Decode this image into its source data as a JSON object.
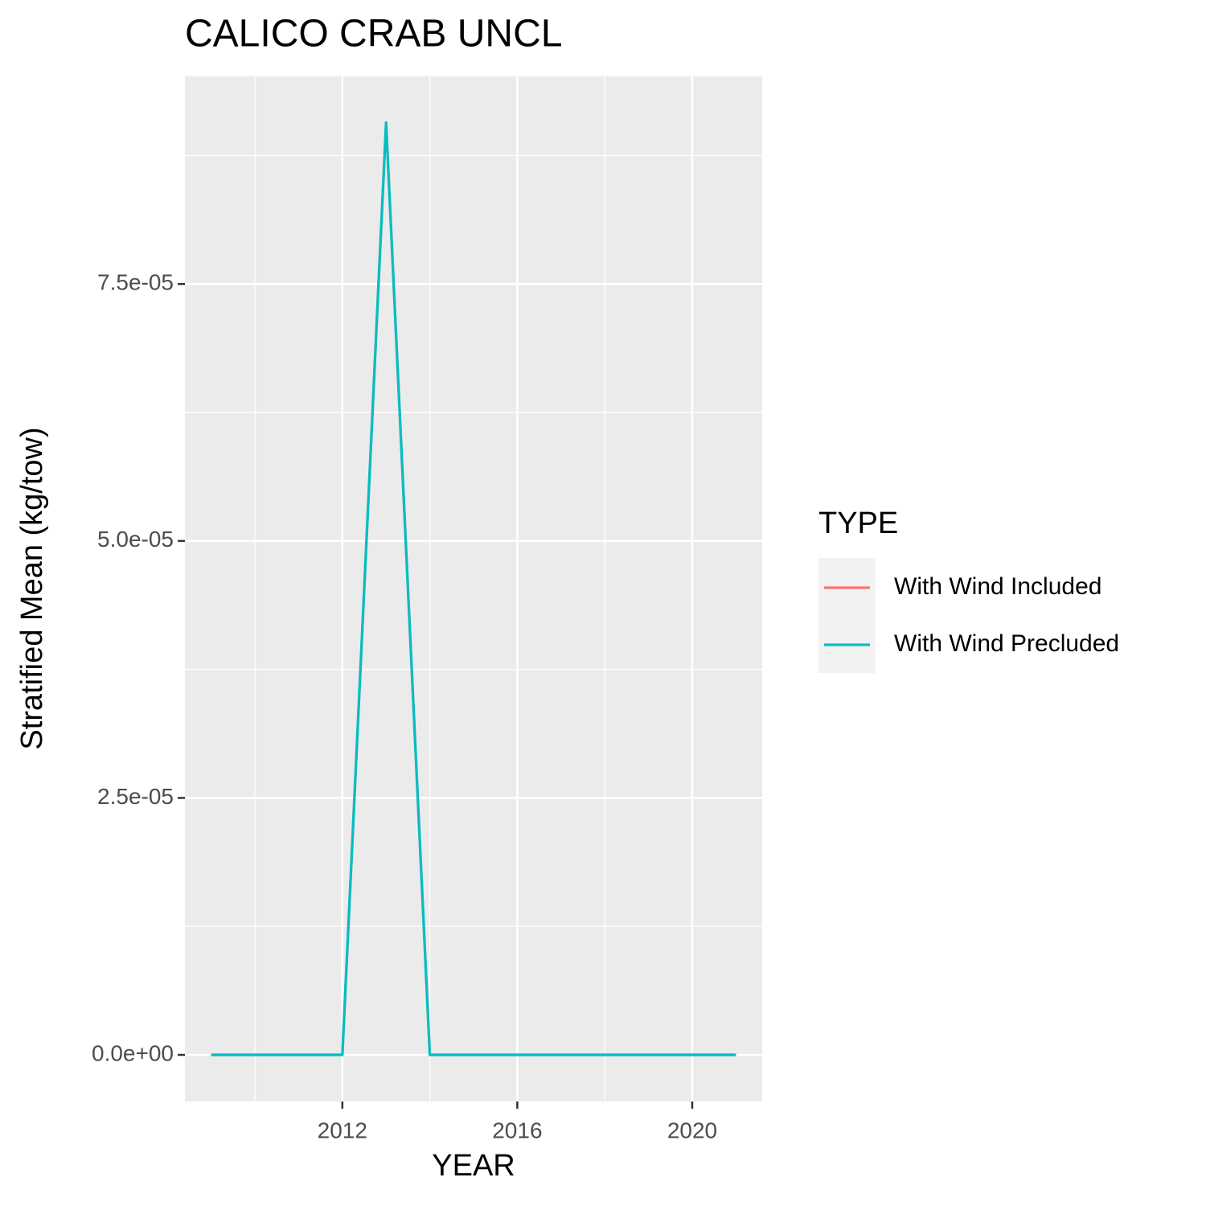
{
  "chart_data": {
    "type": "line",
    "title": "CALICO CRAB UNCL",
    "x_label": "YEAR",
    "y_label": "Stratified Mean (kg/tow)",
    "x": [
      2009,
      2010,
      2011,
      2012,
      2013,
      2014,
      2015,
      2016,
      2017,
      2018,
      2019,
      2020,
      2021
    ],
    "series": [
      {
        "name": "With Wind Included",
        "color": "#F8766D",
        "values": [
          0,
          0,
          0,
          0,
          9.07e-05,
          0,
          0,
          0,
          0,
          0,
          0,
          0,
          0
        ]
      },
      {
        "name": "With Wind Precluded",
        "color": "#00BFC4",
        "values": [
          0,
          0,
          0,
          0,
          9.07e-05,
          0,
          0,
          0,
          0,
          0,
          0,
          0,
          0
        ]
      }
    ],
    "xlim": [
      2008.4,
      2021.6
    ],
    "xticks": [
      2012,
      2016,
      2020
    ],
    "ylim": [
      -4.535e-06,
      9.52e-05
    ],
    "yticks": [
      {
        "value": 0,
        "label": "0.0e+00"
      },
      {
        "value": 2.5e-05,
        "label": "2.5e-05"
      },
      {
        "value": 5e-05,
        "label": "5.0e-05"
      },
      {
        "value": 7.5e-05,
        "label": "7.5e-05"
      }
    ],
    "grid": true,
    "legend": {
      "title": "TYPE",
      "position": "right"
    }
  }
}
